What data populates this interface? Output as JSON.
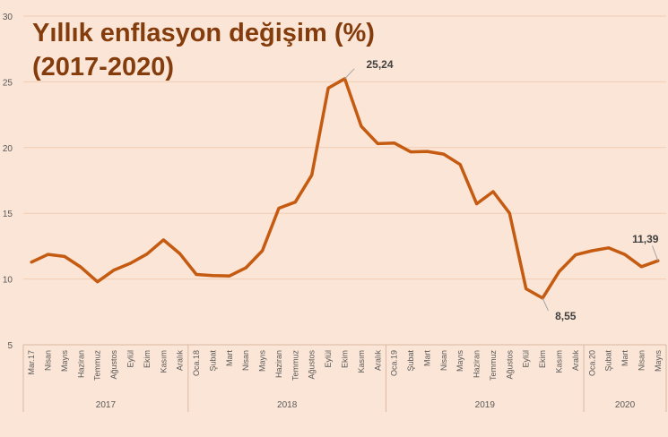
{
  "chart_data": {
    "type": "line",
    "title_lines": [
      "Yıllık enflasyon değişim (%)",
      "(2017-2020)"
    ],
    "xlabel": "",
    "ylabel": "",
    "ylim": [
      5,
      30
    ],
    "y_ticks": [
      5,
      10,
      15,
      20,
      25,
      30
    ],
    "grid": "horizontal",
    "legend": "none",
    "colors": {
      "background": "#fbe5d6",
      "line": "#c55a11",
      "title": "#843c0c",
      "grid": "#f2cdb4",
      "text": "#595959"
    },
    "year_groups": [
      {
        "label": "2017",
        "count": 10
      },
      {
        "label": "2018",
        "count": 12
      },
      {
        "label": "2019",
        "count": 12
      },
      {
        "label": "2020",
        "count": 5
      }
    ],
    "categories": [
      "Mar.17",
      "Nisan",
      "Mayıs",
      "Haziran",
      "Temmuz",
      "Ağustos",
      "Eylül",
      "Ekim",
      "Kasım",
      "Aralık",
      "Oca.18",
      "Şubat",
      "Mart",
      "Nisan",
      "Mayıs",
      "Haziran",
      "Temmuz",
      "Ağustos",
      "Eylül",
      "Ekim",
      "Kasım",
      "Aralık",
      "Oca.19",
      "Şubat",
      "Mart",
      "Nisan",
      "Mayıs",
      "Haziran",
      "Temmuz",
      "Ağustos",
      "Eylül",
      "Ekim",
      "Kasım",
      "Aralık",
      "Oca.20",
      "Şubat",
      "Mart",
      "Nisan",
      "Mayıs"
    ],
    "series": [
      {
        "values": [
          11.29,
          11.87,
          11.72,
          10.9,
          9.79,
          10.68,
          11.2,
          11.9,
          12.98,
          11.92,
          10.35,
          10.26,
          10.23,
          10.85,
          12.15,
          15.39,
          15.85,
          17.9,
          24.52,
          25.24,
          21.62,
          20.3,
          20.35,
          19.67,
          19.71,
          19.5,
          18.71,
          15.72,
          16.65,
          15.01,
          9.26,
          8.55,
          10.56,
          11.84,
          12.15,
          12.37,
          11.86,
          10.94,
          11.39
        ]
      }
    ],
    "annotations": [
      {
        "index": 19,
        "text": "25,24"
      },
      {
        "index": 31,
        "text": "8,55"
      },
      {
        "index": 38,
        "text": "11,39"
      }
    ]
  }
}
